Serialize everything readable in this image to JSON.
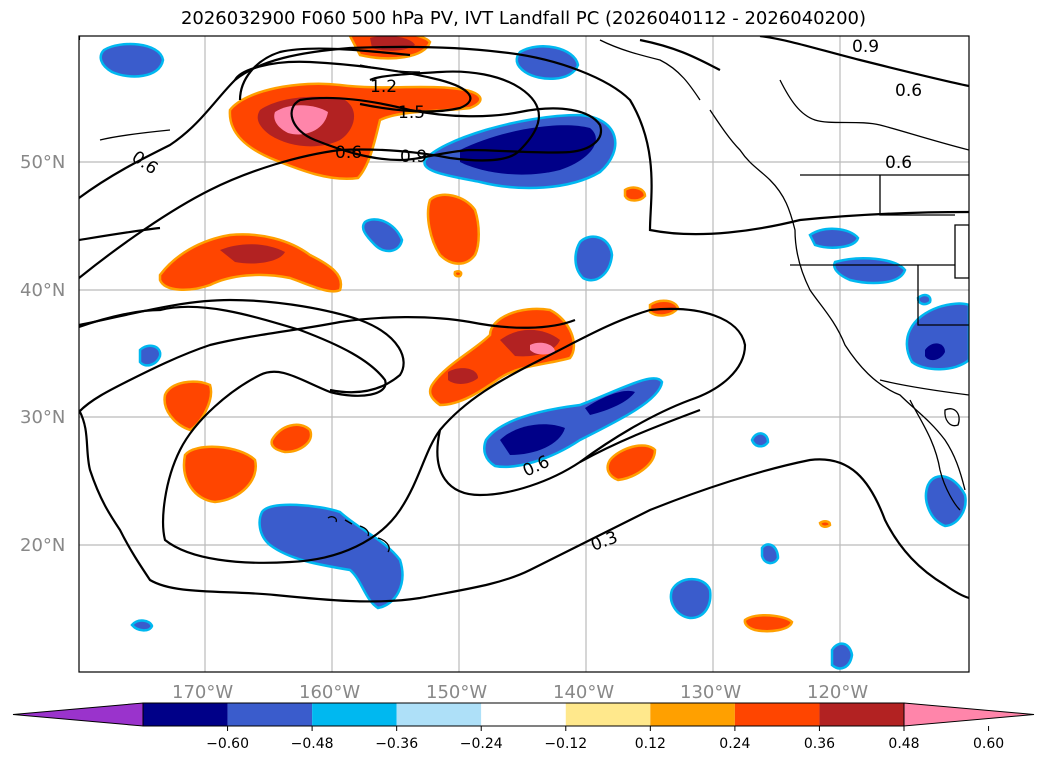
{
  "title": "2026032900 F060 500 hPa PV, IVT Landfall PC (2026040112 - 2026040200)",
  "lat_labels": [
    "50°N",
    "40°N",
    "30°N",
    "20°N"
  ],
  "lon_labels": [
    "170°W",
    "160°W",
    "150°W",
    "140°W",
    "130°W",
    "120°W"
  ],
  "contour_labels": [
    "0.6",
    "0.6",
    "0.9",
    "1.2",
    "1.5",
    "0.9",
    "0.6",
    "0.6",
    "0.6",
    "0.3"
  ],
  "colorbar": {
    "ticks": [
      "−0.60",
      "−0.48",
      "−0.36",
      "−0.24",
      "−0.12",
      "0.12",
      "0.24",
      "0.36",
      "0.48",
      "0.60"
    ],
    "colors": [
      "#9a33cc",
      "#000088",
      "#3a5ccc",
      "#00b8f0",
      "#aee0f8",
      "#ffffff",
      "#ffe88c",
      "#ffa000",
      "#ff4500",
      "#b22222",
      "#ff85aa"
    ]
  },
  "colors": {
    "positive_high": "#ff85aa",
    "positive_mid": "#b22222",
    "positive": "#ff4500",
    "positive_low": "#ffa000",
    "negative_low": "#00b8f0",
    "negative": "#3a5ccc",
    "negative_high": "#000088"
  }
}
